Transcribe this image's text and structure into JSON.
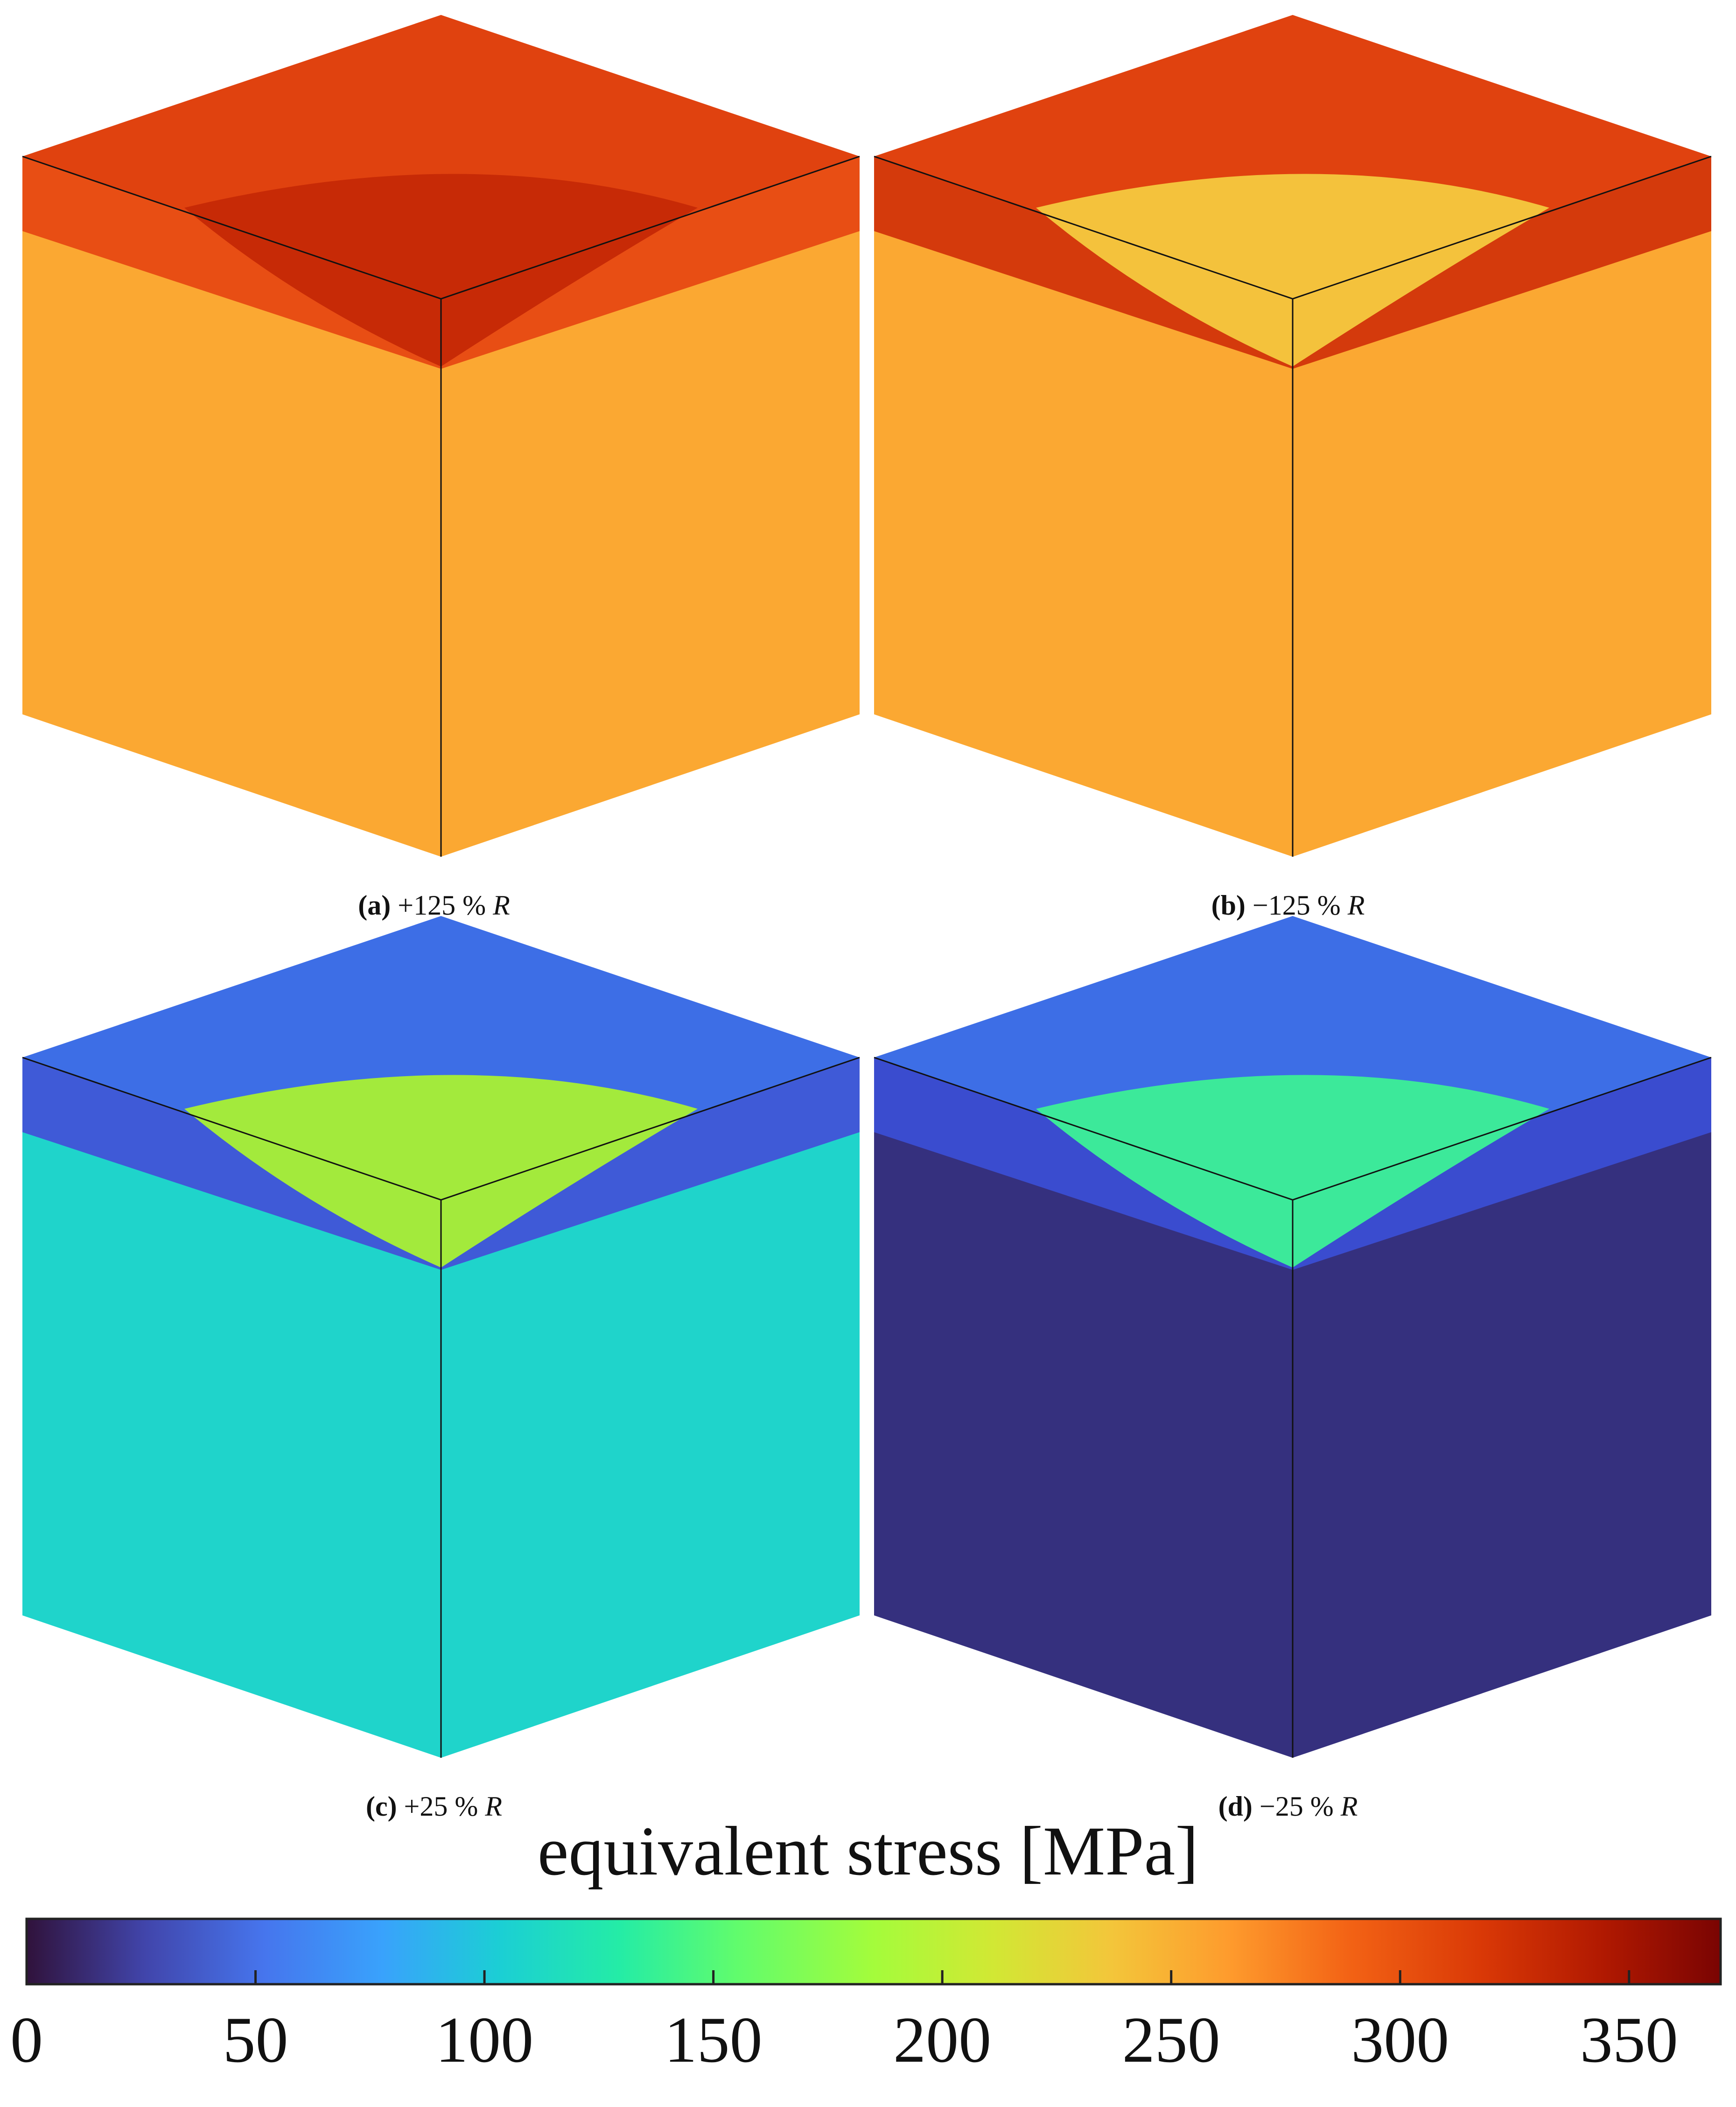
{
  "panels": [
    {
      "id": "a",
      "letter": "(a)",
      "label": "+125 %",
      "symbol": "R"
    },
    {
      "id": "b",
      "letter": "(b)",
      "label": "−125 %",
      "symbol": "R"
    },
    {
      "id": "c",
      "letter": "(c)",
      "label": "+25 %",
      "symbol": "R"
    },
    {
      "id": "d",
      "letter": "(d)",
      "label": "−25 %",
      "symbol": "R"
    }
  ],
  "colorbar": {
    "title": "equivalent stress [MPa]",
    "min": 0,
    "max": 370,
    "ticks": [
      "0",
      "50",
      "100",
      "150",
      "200",
      "250",
      "300",
      "350"
    ],
    "tick_values": [
      0,
      50,
      100,
      150,
      200,
      250,
      300,
      350
    ]
  },
  "colors": {
    "a_top": "#e0420f",
    "a_band": "#e84e14",
    "a_body": "#fba832",
    "a_lens": "#c72a06",
    "b_top": "#e0420f",
    "b_band": "#d43a0c",
    "b_body": "#fba832",
    "b_lens": "#f4c23c",
    "c_top": "#3d6ee6",
    "c_band": "#3f5ad7",
    "c_body": "#1fd4cb",
    "c_lens": "#a3ea3c",
    "d_top": "#3d6ee6",
    "d_band": "#3a4ccf",
    "d_body": "#35307e",
    "d_lens": "#3ce99a"
  }
}
